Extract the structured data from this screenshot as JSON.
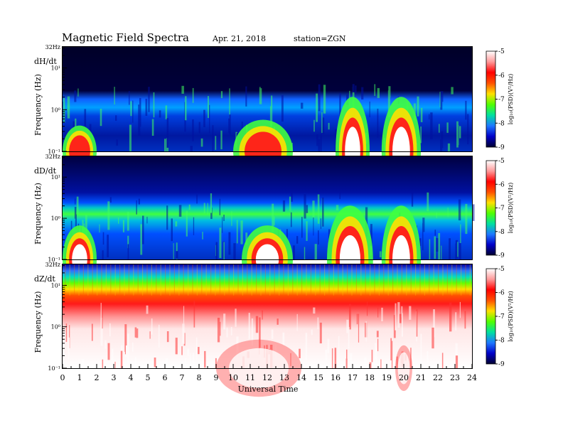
{
  "header": {
    "title": "Magnetic  Field  Spectra",
    "date": "Apr. 21, 2018",
    "station": "station=ZGN"
  },
  "chart_data": {
    "type": "heatmap",
    "xlabel": "Universal Time",
    "x_ticks": [
      "0",
      "1",
      "2",
      "3",
      "4",
      "5",
      "6",
      "7",
      "8",
      "9",
      "10",
      "11",
      "12",
      "13",
      "14",
      "15",
      "16",
      "17",
      "18",
      "19",
      "20",
      "21",
      "22",
      "23",
      "24"
    ],
    "xlim": [
      0,
      24
    ],
    "panels": [
      {
        "component": "dH/dt",
        "ylabel": "Frequency (Hz)",
        "yscale": "log",
        "top_label": "32Hz",
        "y_ticks": [
          "10¹",
          "10⁰",
          "10⁻¹"
        ],
        "color_ticks": [
          "-5",
          "-6",
          "-7",
          "-8",
          "-9"
        ],
        "color_label": "log₁₀(PSD)(V²/Hz)",
        "clim": [
          -9,
          -5
        ],
        "activity": [
          {
            "t0": 0,
            "t1": 2,
            "level": 0.45
          },
          {
            "t0": 10,
            "t1": 13.5,
            "level": 0.55
          },
          {
            "t0": 16,
            "t1": 18,
            "level": 0.95
          },
          {
            "t0": 18.7,
            "t1": 21,
            "level": 0.95
          }
        ]
      },
      {
        "component": "dD/dt",
        "ylabel": "Frequency (Hz)",
        "yscale": "log",
        "top_label": "32Hz",
        "y_ticks": [
          "10¹",
          "10⁰",
          "10⁻¹"
        ],
        "color_ticks": [
          "-5",
          "-6",
          "-7",
          "-8",
          "-9"
        ],
        "color_label": "log₁₀(PSD)(V²/Hz)",
        "clim": [
          -9,
          -5
        ],
        "activity": [
          {
            "t0": 0,
            "t1": 2,
            "level": 0.6
          },
          {
            "t0": 10.5,
            "t1": 13.5,
            "level": 0.6
          },
          {
            "t0": 15.5,
            "t1": 18.2,
            "level": 0.95
          },
          {
            "t0": 18.7,
            "t1": 21,
            "level": 0.95
          }
        ]
      },
      {
        "component": "dZ/dt",
        "ylabel": "Frequency (Hz)",
        "yscale": "log",
        "top_label": "32Hz",
        "y_ticks": [
          "10¹",
          "10⁰",
          "10⁻¹"
        ],
        "color_ticks": [
          "-5",
          "-6",
          "-7",
          "-8",
          "-9"
        ],
        "color_label": "log₁₀(PSD)(V²/Hz)",
        "clim": [
          -9,
          -5
        ],
        "activity": [
          {
            "t0": 9,
            "t1": 14,
            "level": 0.5
          },
          {
            "t0": 19.5,
            "t1": 20.5,
            "level": 0.4
          }
        ]
      }
    ]
  },
  "colors": {
    "colormap": [
      "#000030",
      "#0000c8",
      "#1e78ff",
      "#00e0a0",
      "#50ff00",
      "#ffe000",
      "#ff5000",
      "#ff0000",
      "#ff9a9a",
      "#ffffff"
    ]
  }
}
